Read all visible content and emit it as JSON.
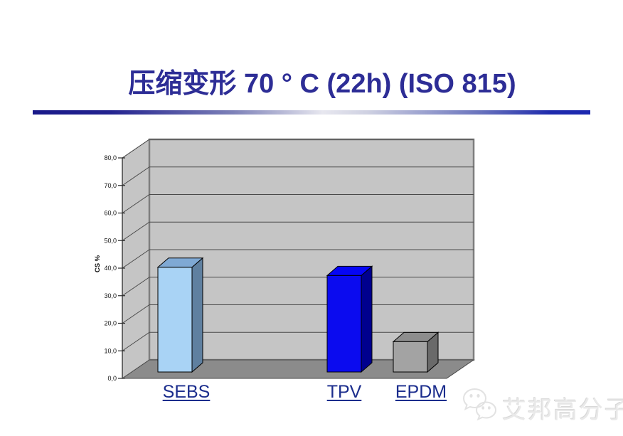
{
  "slide": {
    "title": "压缩变形 70 ° C (22h) (ISO 815)",
    "title_color": "#2d2d96",
    "divider_colors": [
      "#191989",
      "#e7e7ef",
      "#1c28b0"
    ],
    "watermark": {
      "text": "艾邦高分子",
      "icon": "wechat-bubbles-icon",
      "color": "#e9e9e9"
    }
  },
  "chart_data": {
    "type": "bar",
    "style": "3d-box",
    "title": "",
    "xlabel": "",
    "ylabel": "CS %",
    "categories": [
      "SEBS",
      "TPV",
      "EPDM"
    ],
    "values": [
      38,
      35,
      11
    ],
    "ylim": [
      0,
      80
    ],
    "ytick_step": 10,
    "ytick_labels": [
      "0,0",
      "10,0",
      "20,0",
      "30,0",
      "40,0",
      "50,0",
      "60,0",
      "70,0",
      "80,0"
    ],
    "grid": true,
    "legend": false,
    "category_label_color": "#1b2d8d",
    "wall_color": "#c5c5c5",
    "floor_color": "#8b8b8b",
    "gridline_color": "#4a4a4a",
    "frame_color": "#7e7e7e",
    "axis_color": "#2b2b2b",
    "tick_label_color": "#111111",
    "series_colors": [
      {
        "front": "#a9d3f5",
        "top": "#7fa9d4",
        "side": "#5f80a0"
      },
      {
        "front": "#0b0bef",
        "top": "#0606f5",
        "side": "#00008e"
      },
      {
        "front": "#a3a3a3",
        "top": "#8d8d8d",
        "side": "#6a6a6a"
      }
    ]
  }
}
